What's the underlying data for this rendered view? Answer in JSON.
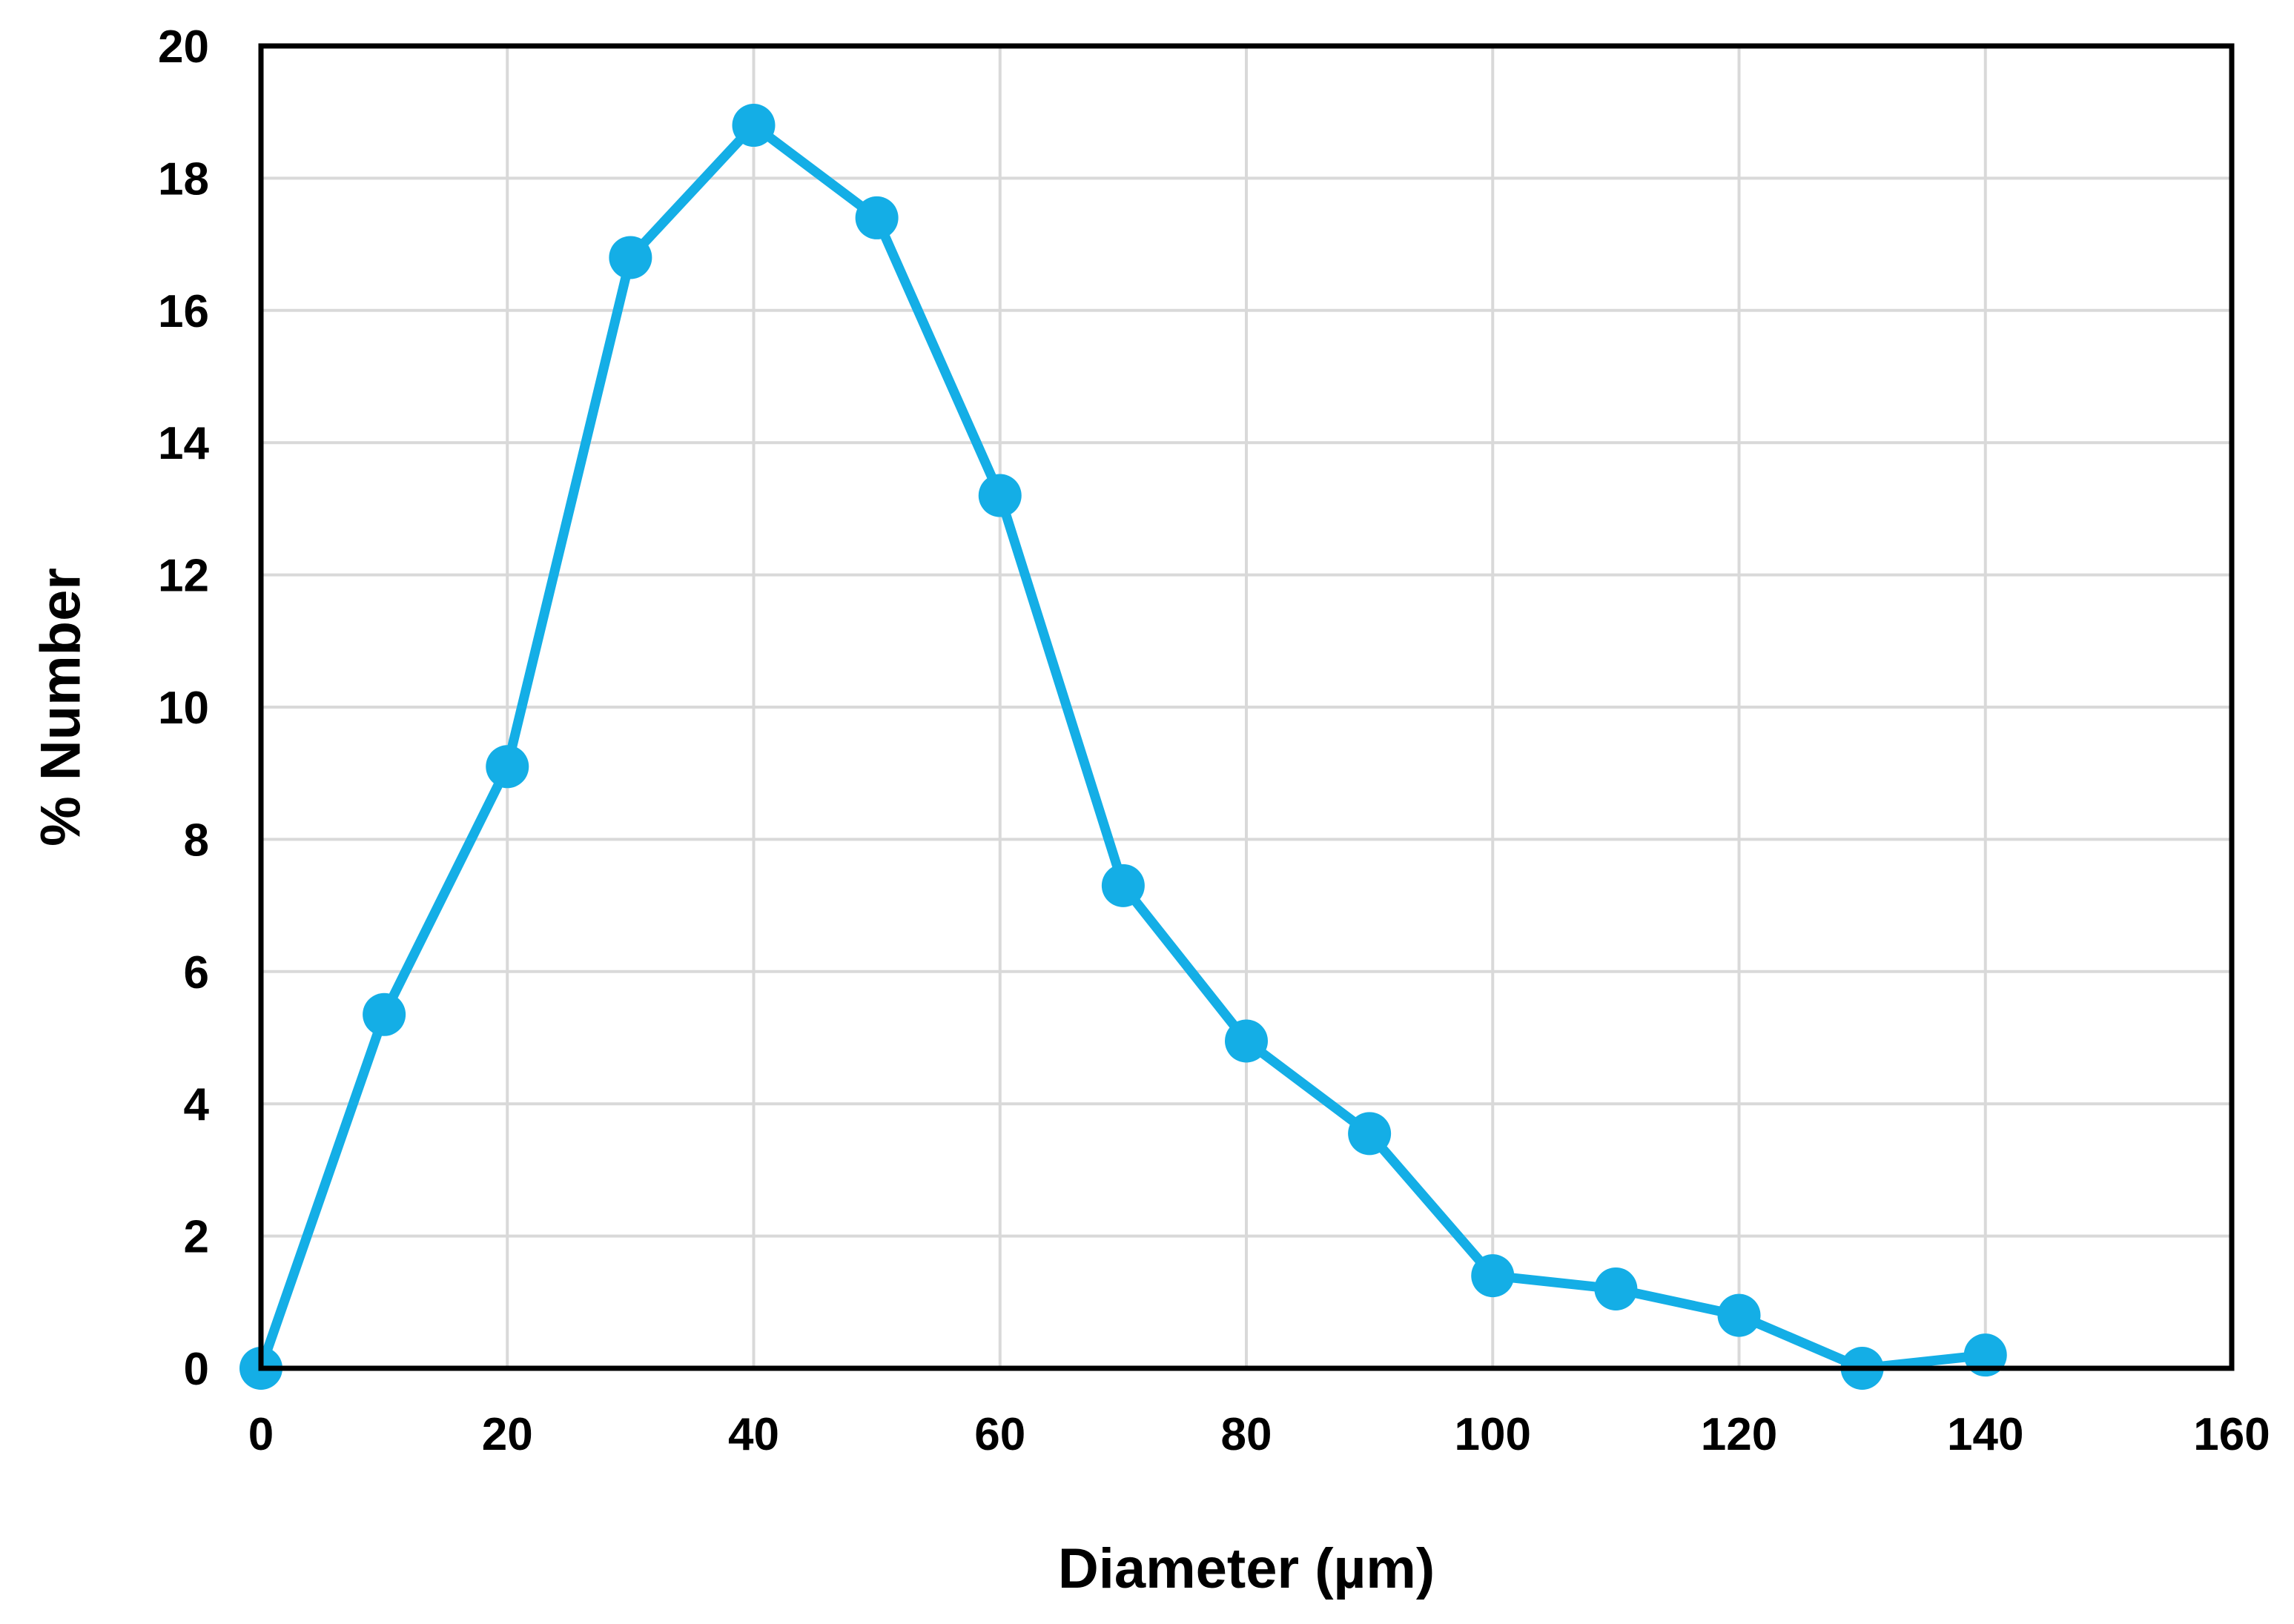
{
  "chart_data": {
    "type": "line",
    "title": "",
    "xlabel": "Diameter (µm)",
    "ylabel": "% Number",
    "xlim": [
      0,
      160
    ],
    "ylim": [
      0,
      20
    ],
    "xticks": [
      0,
      20,
      40,
      60,
      80,
      100,
      120,
      140,
      160
    ],
    "yticks": [
      0,
      2,
      4,
      6,
      8,
      10,
      12,
      14,
      16,
      18,
      20
    ],
    "grid": true,
    "legend": "none",
    "series": [
      {
        "color": "#14aee6",
        "marker": "circle",
        "x": [
          0,
          10,
          20,
          30,
          40,
          50,
          60,
          70,
          80,
          90,
          100,
          110,
          120,
          130,
          140
        ],
        "y": [
          0.0,
          5.35,
          9.1,
          16.8,
          18.8,
          17.4,
          13.2,
          7.3,
          4.95,
          3.55,
          1.4,
          1.2,
          0.8,
          0.0,
          0.2
        ]
      }
    ]
  }
}
